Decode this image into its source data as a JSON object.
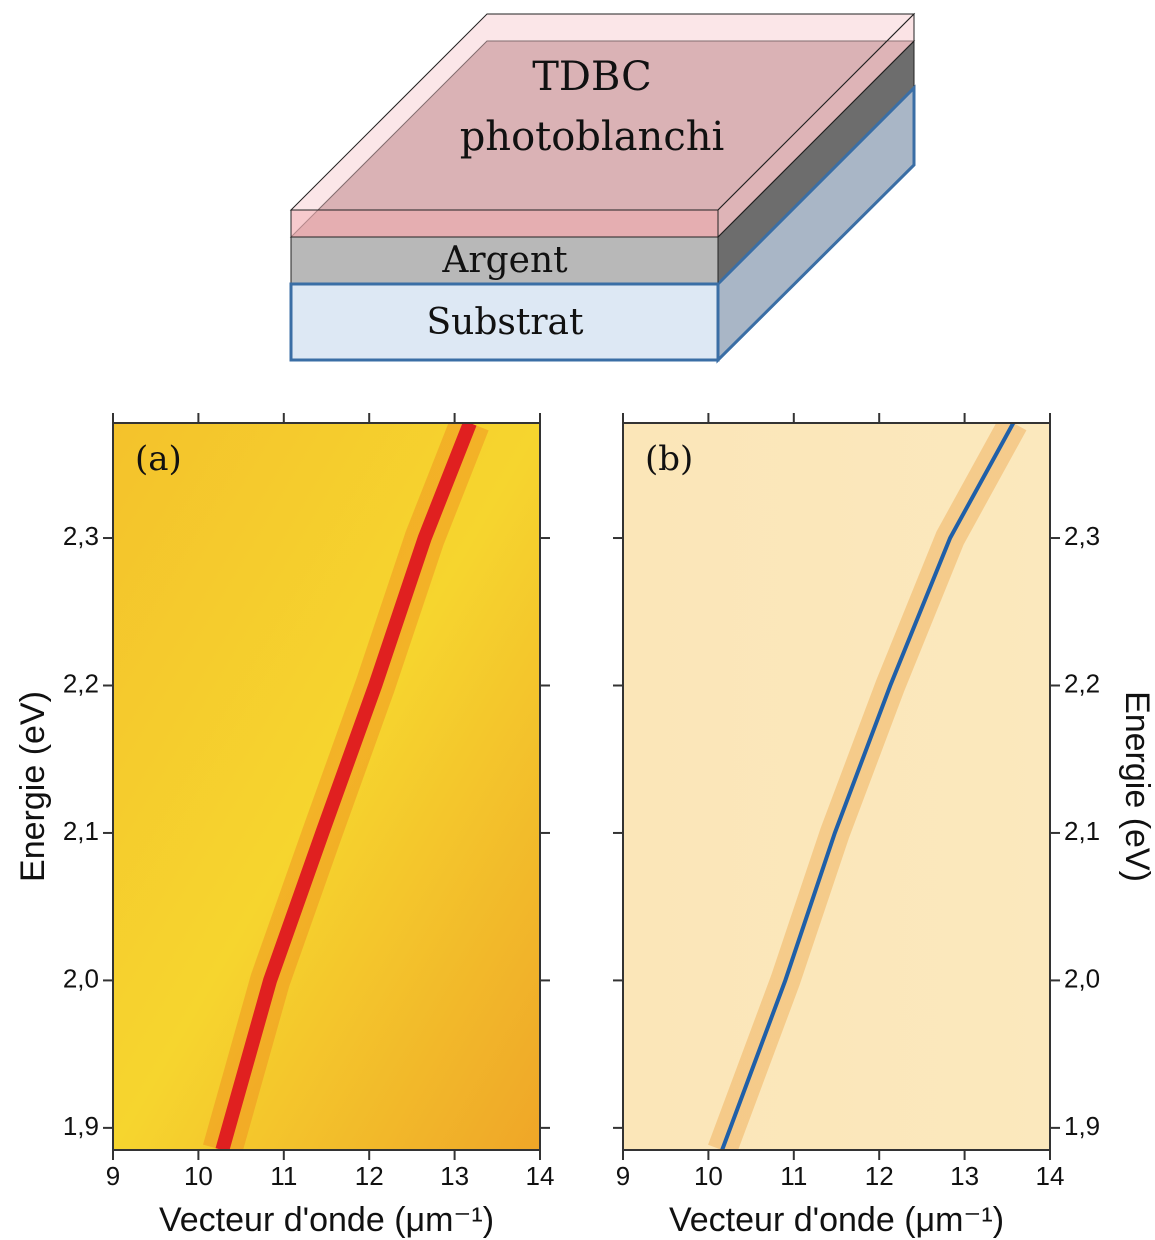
{
  "diagram": {
    "top_layer": [
      "TDBC",
      "photoblanchi"
    ],
    "middle_layer": "Argent",
    "bottom_layer": "Substrat"
  },
  "chart_data": [
    {
      "type": "line",
      "panel_label": "(a)",
      "xlabel": "Vecteur d'onde (μm⁻¹)",
      "ylabel": "Energie (eV)",
      "ylabel_side": "left",
      "x": [
        10.28,
        10.84,
        11.45,
        12.07,
        12.65,
        13.18
      ],
      "values": [
        1.885,
        2.0,
        2.1,
        2.2,
        2.3,
        2.378
      ],
      "color": "#e02020",
      "xlim": [
        9,
        14
      ],
      "ylim": [
        1.885,
        2.378
      ],
      "xticks": [
        9,
        10,
        11,
        12,
        13,
        14
      ],
      "yticks": [
        {
          "value": 1.9,
          "label": "1,9"
        },
        {
          "value": 2.0,
          "label": "2,0"
        },
        {
          "value": 2.1,
          "label": "2,1"
        },
        {
          "value": 2.2,
          "label": "2,2"
        },
        {
          "value": 2.3,
          "label": "2,3"
        }
      ]
    },
    {
      "type": "line",
      "panel_label": "(b)",
      "xlabel": "Vecteur d'onde (μm⁻¹)",
      "ylabel": "Energie (eV)",
      "ylabel_side": "right",
      "x": [
        10.16,
        10.9,
        11.48,
        12.13,
        12.83,
        13.57
      ],
      "values": [
        1.885,
        2.0,
        2.1,
        2.2,
        2.3,
        2.378
      ],
      "color": "#1f5fa8",
      "xlim": [
        9,
        14
      ],
      "ylim": [
        1.885,
        2.378
      ],
      "xticks": [
        9,
        10,
        11,
        12,
        13,
        14
      ],
      "yticks": [
        {
          "value": 1.9,
          "label": "1,9"
        },
        {
          "value": 2.0,
          "label": "2,0"
        },
        {
          "value": 2.1,
          "label": "2,1"
        },
        {
          "value": 2.2,
          "label": "2,2"
        },
        {
          "value": 2.3,
          "label": "2,3"
        }
      ]
    }
  ]
}
